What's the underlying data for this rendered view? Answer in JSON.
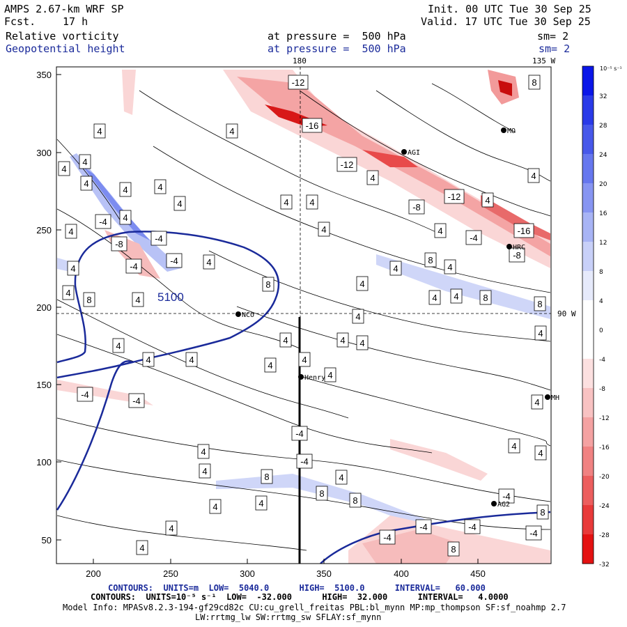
{
  "header": {
    "model": "AMPS 2.67-km WRF SP",
    "fcst_label": "Fcst.",
    "fcst_value": "17 h",
    "init": "Init. 00 UTC Tue 30 Sep 25",
    "valid": "Valid. 17 UTC Tue 30 Sep 25",
    "field1": "Relative vorticity",
    "field1_level": "at pressure =  500 hPa",
    "field1_sm": "sm= 2",
    "field2": "Geopotential height",
    "field2_level": "at pressure =  500 hPa",
    "field2_sm": "sm= 2",
    "top_lon_180": "180",
    "top_lon_135w": "135 W",
    "right_lon_90w": "90 W"
  },
  "axes": {
    "x_ticks": [
      "200",
      "250",
      "300",
      "350",
      "400",
      "450"
    ],
    "y_ticks": [
      "350",
      "300",
      "250",
      "200",
      "150",
      "100",
      "50"
    ]
  },
  "colorbar": {
    "unit_label": "10⁻⁵ s⁻¹",
    "labels": [
      "32",
      "28",
      "24",
      "20",
      "16",
      "12",
      "8",
      "4",
      "0",
      "-4",
      "-8",
      "-12",
      "-16",
      "-20",
      "-24",
      "-28",
      "-32"
    ],
    "colors": [
      "#0a16e8",
      "#2a3ae8",
      "#4758ea",
      "#6677ee",
      "#8795f2",
      "#a8b4f5",
      "#c8d0f8",
      "#e6eafb",
      "#ffffff",
      "#ffffff",
      "#fce0e0",
      "#f8c2c2",
      "#f4a2a2",
      "#f08282",
      "#ec5e5e",
      "#e83a3a",
      "#e41212"
    ]
  },
  "stations": [
    {
      "name": "NCO"
    },
    {
      "name": "Henry"
    },
    {
      "name": "AGI"
    },
    {
      "name": "HRC"
    },
    {
      "name": "MO"
    },
    {
      "name": "MH"
    },
    {
      "name": "AG2"
    }
  ],
  "contour_labels": [
    "4",
    "-4",
    "8",
    "-8",
    "-12",
    "-16",
    "5100"
  ],
  "footer": {
    "line1": "CONTOURS:  UNITS=m  LOW=  5040.0      HIGH=  5100.0      INTERVAL=   60.000",
    "line2": "CONTOURS:  UNITS=10⁻⁵ s⁻¹  LOW=  -32.000      HIGH=  32.000      INTERVAL=   4.0000",
    "line3": "Model Info: MPASv8.2.3-194-gf29cd82c CU:cu_grell_freitas PBL:bl_mynn MP:mp_thompson SF:sf_noahmp 2.7",
    "line4": "LW:rrtmg_lw SW:rrtmg_sw SFLAY:sf_mynn"
  },
  "colors": {
    "geopotential": "#1a2a9a",
    "positive_shade": "#7080ee",
    "negative_shade": "#e84a4a"
  }
}
